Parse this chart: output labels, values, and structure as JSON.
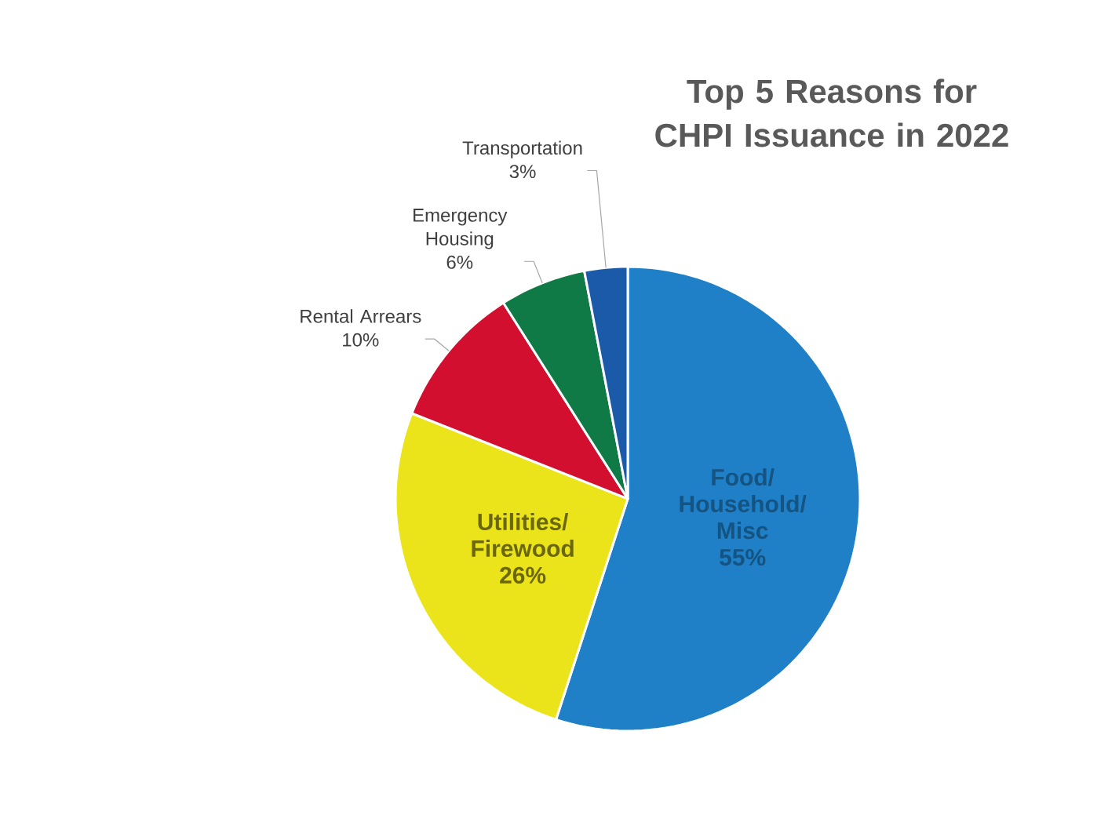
{
  "chart_data": {
    "type": "pie",
    "title": "Top 5 Reasons for CHPI Issuance in 2022",
    "categories": [
      "Food/ Household/ Misc",
      "Utilities/ Firewood",
      "Rental Arrears",
      "Emergency Housing",
      "Transportation"
    ],
    "values": [
      55,
      26,
      10,
      6,
      3
    ],
    "value_labels": [
      "55%",
      "26%",
      "10%",
      "6%",
      "3%"
    ],
    "colors": [
      "#1f80c8",
      "#ece41a",
      "#d20f2f",
      "#0f7a45",
      "#1a5aa8"
    ]
  }
}
